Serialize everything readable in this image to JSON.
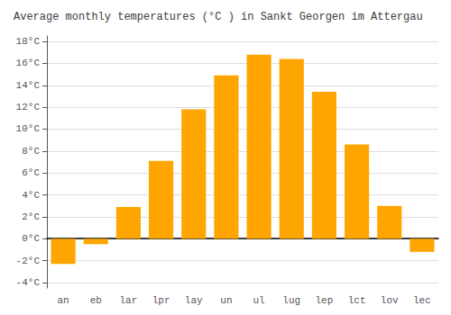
{
  "chart_data": {
    "type": "bar",
    "title": "Average monthly temperatures (°C ) in Sankt Georgen im Attergau",
    "categories": [
      "an",
      "eb",
      "lar",
      "lpr",
      "lay",
      "un",
      "ul",
      "lug",
      "lep",
      "lct",
      "lov",
      "lec"
    ],
    "values": [
      -2.3,
      -0.5,
      2.9,
      7.1,
      11.8,
      14.9,
      16.8,
      16.4,
      13.4,
      8.6,
      3.0,
      -1.2
    ],
    "color": "#FFA500",
    "ylim": [
      -4.5,
      18.5
    ],
    "yticks": [
      {
        "value": -4,
        "label": "-4°C"
      },
      {
        "value": -2,
        "label": "-2°C"
      },
      {
        "value": 0,
        "label": "0°C"
      },
      {
        "value": 2,
        "label": "2°C"
      },
      {
        "value": 4,
        "label": "4°C"
      },
      {
        "value": 6,
        "label": "6°C"
      },
      {
        "value": 8,
        "label": "8°C"
      },
      {
        "value": 10,
        "label": "10°C"
      },
      {
        "value": 12,
        "label": "12°C"
      },
      {
        "value": 14,
        "label": "14°C"
      },
      {
        "value": 16,
        "label": "16°C"
      },
      {
        "value": 18,
        "label": "18°C"
      }
    ],
    "grid": true
  }
}
